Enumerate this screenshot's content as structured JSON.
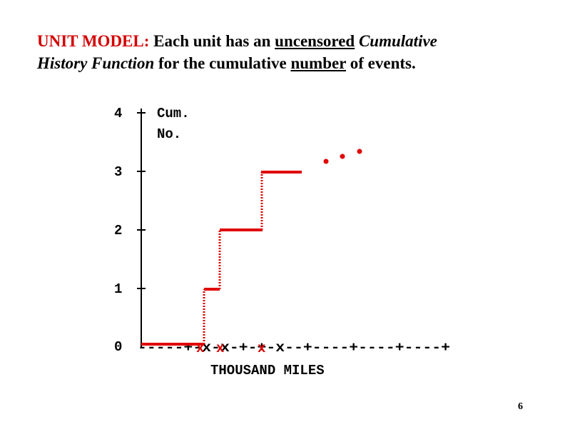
{
  "title": {
    "model_label": "UNIT MODEL:",
    "text_1": " Each unit has an ",
    "uncensored": "uncensored",
    "space_1": " ",
    "cumulative": "Cumulative",
    "history_function": "History Function",
    "text_2": " for the cumulative ",
    "number": "number",
    "text_3": " of events."
  },
  "chart_data": {
    "type": "line",
    "subtype": "step",
    "ylabel_line1": "Cum.",
    "ylabel_line2": "No.",
    "xlabel": "THOUSAND MILES",
    "y_ticks": [
      "0",
      "1",
      "2",
      "3",
      "4"
    ],
    "ylim": [
      0,
      4
    ],
    "x_axis_text": "-----+-x-x-+-+-x--+----+----+----+",
    "event_marks": [
      "x",
      "x",
      "x"
    ],
    "continuation": "...",
    "colors": {
      "step": "#e00000",
      "axis": "#000000"
    }
  },
  "page_number": "6"
}
